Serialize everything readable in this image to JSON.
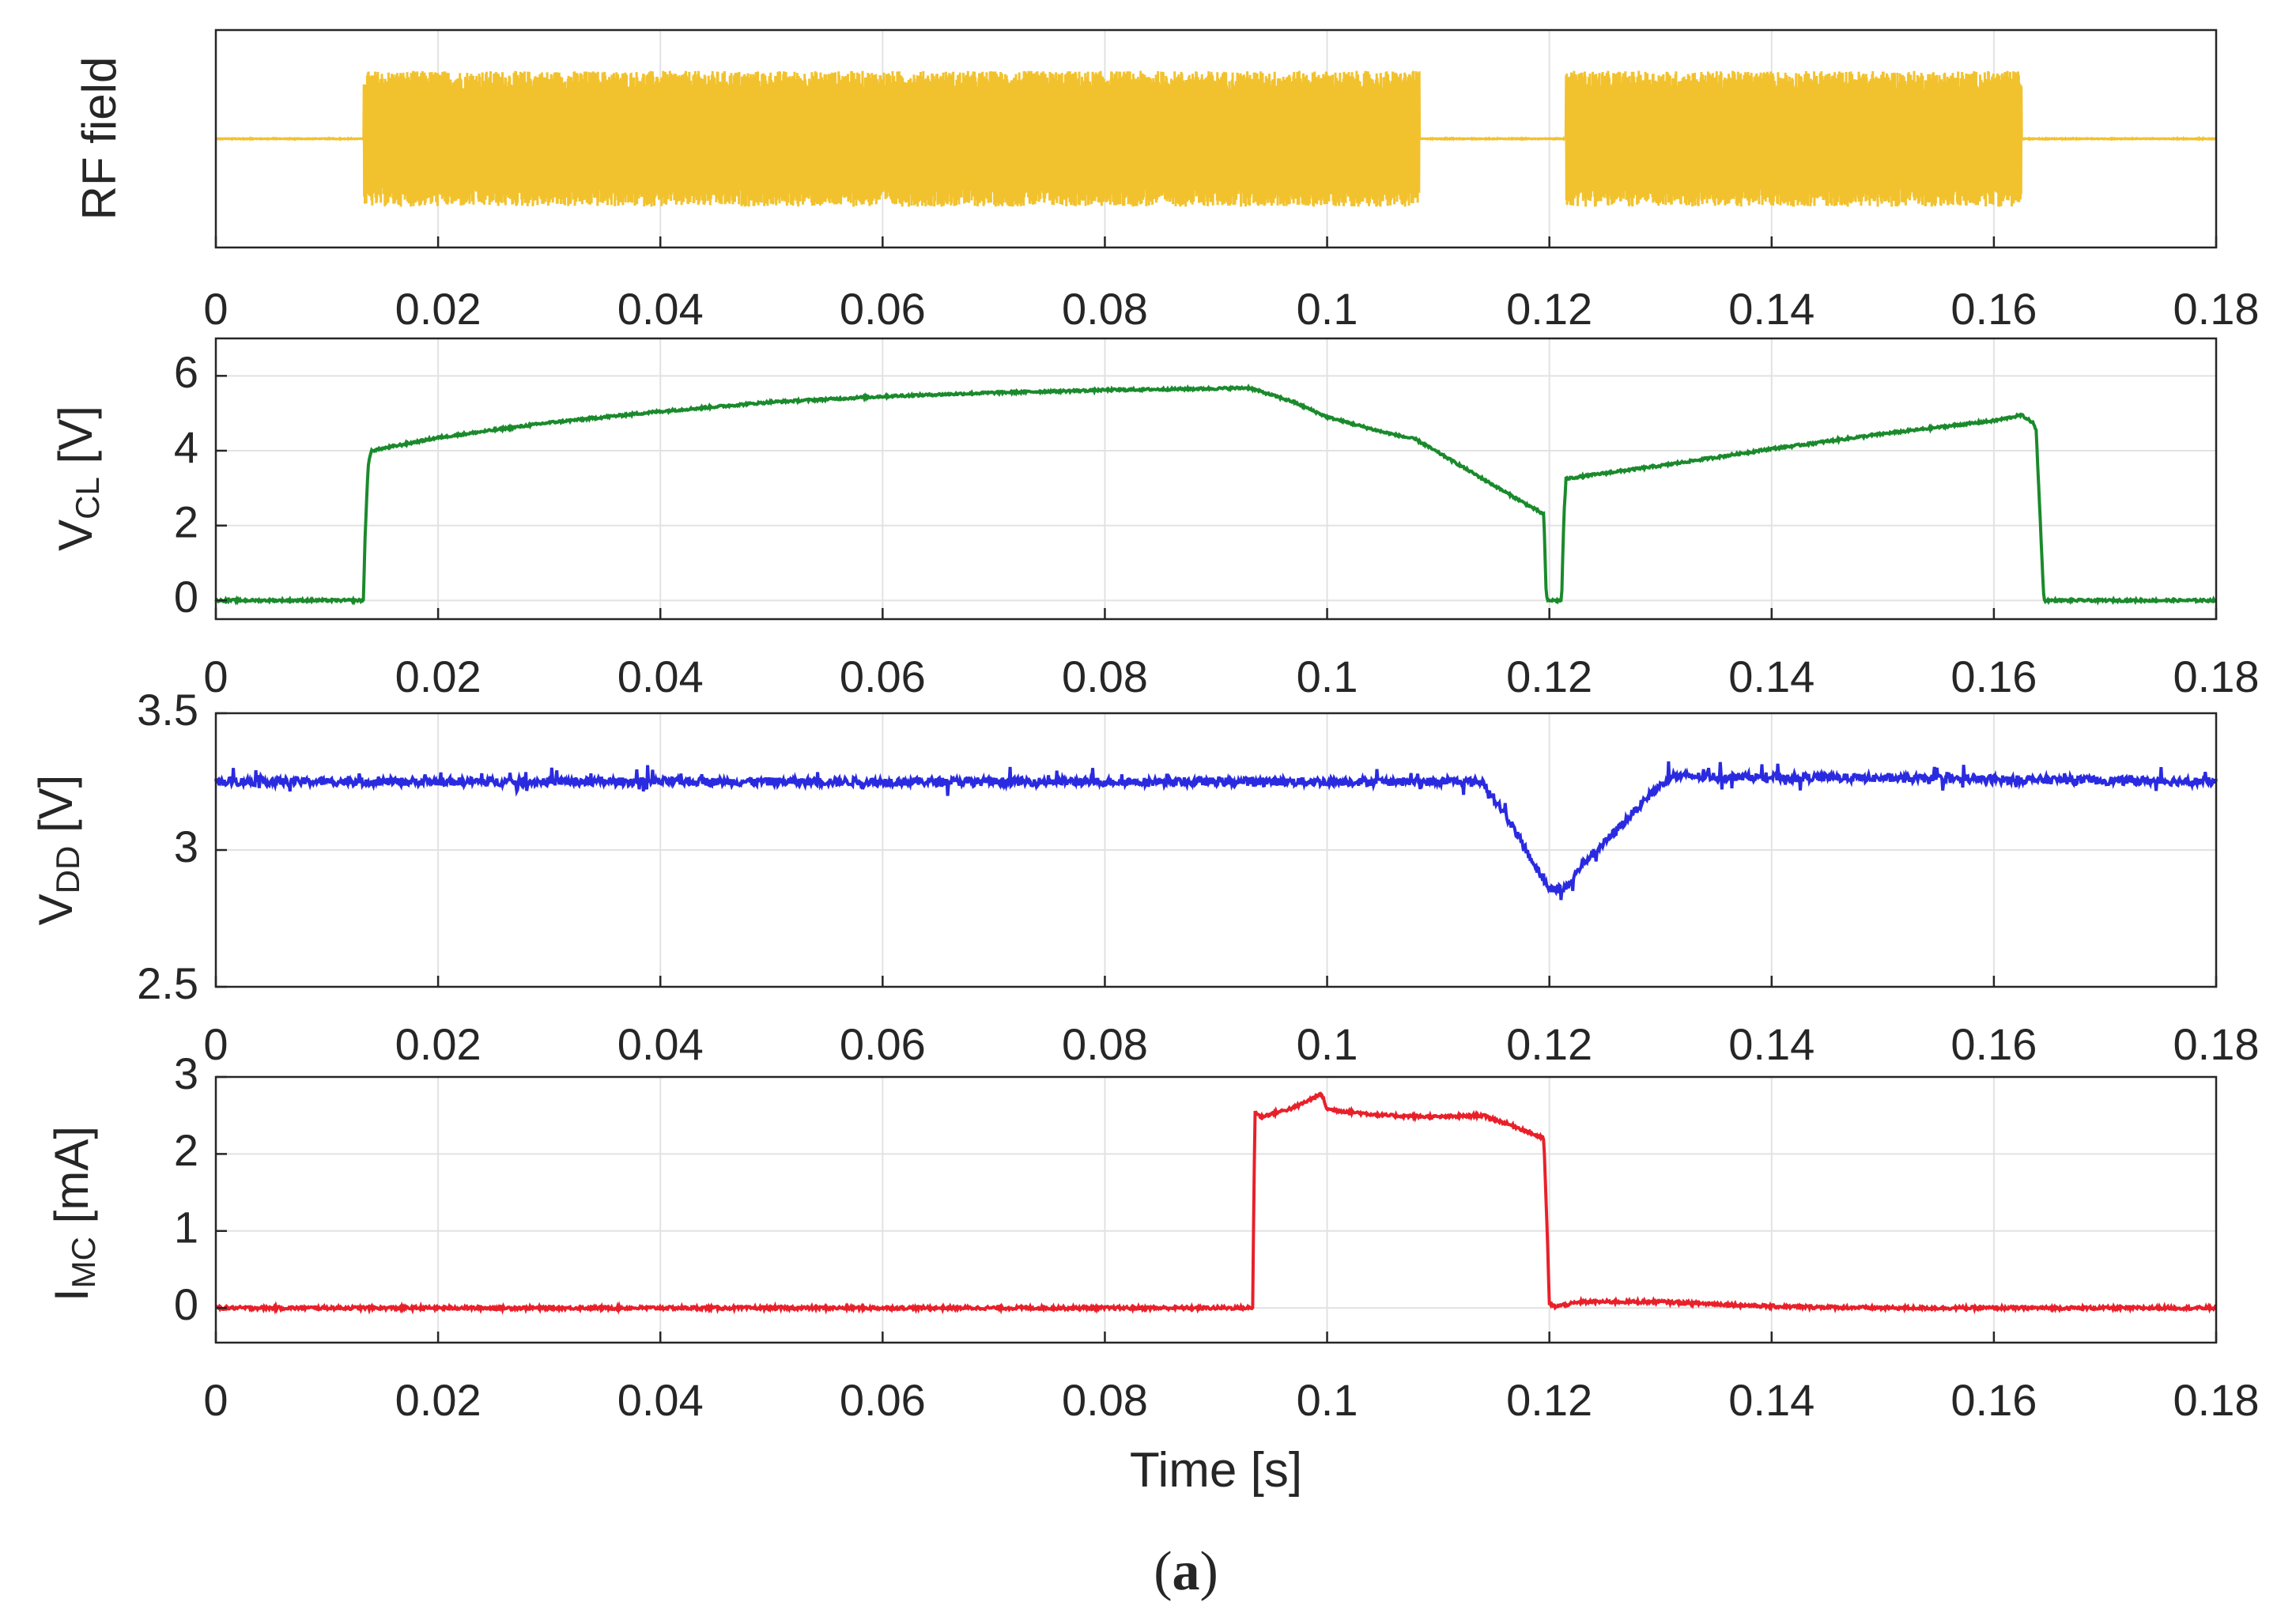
{
  "chart_data": [
    {
      "type": "line",
      "panel": "rf",
      "ylabel": "RF field",
      "color": "#f2c22e",
      "xlim": [
        0,
        0.18
      ],
      "ylim": [
        -1.6,
        1.6
      ],
      "show_y_ticks": false,
      "x_ticks": [
        0,
        0.02,
        0.04,
        0.06,
        0.08,
        0.1,
        0.12,
        0.14,
        0.16,
        0.18
      ],
      "x_tick_labels": [
        "0",
        "0.02",
        "0.04",
        "0.06",
        "0.08",
        "0.1",
        "0.12",
        "0.14",
        "0.16",
        "0.18"
      ],
      "bursts": [
        {
          "start": 0.0133,
          "end": 0.1083,
          "amplitude": 1.0
        },
        {
          "start": 0.1215,
          "end": 0.1625,
          "amplitude": 1.0
        }
      ],
      "grid": true
    },
    {
      "type": "line",
      "panel": "vcl",
      "ylabel_main": "V",
      "ylabel_sub": "CL",
      "ylabel_unit": " [V]",
      "color": "#1a8a2c",
      "xlim": [
        0,
        0.18
      ],
      "ylim": [
        -0.5,
        7
      ],
      "y_ticks": [
        0,
        2,
        4,
        6
      ],
      "x_ticks": [
        0,
        0.02,
        0.04,
        0.06,
        0.08,
        0.1,
        0.12,
        0.14,
        0.16,
        0.18
      ],
      "x_tick_labels": [
        "0",
        "0.02",
        "0.04",
        "0.06",
        "0.08",
        "0.1",
        "0.12",
        "0.14",
        "0.16",
        "0.18"
      ],
      "grid": true,
      "x": [
        0,
        0.0133,
        0.0134,
        0.0137,
        0.014,
        0.02,
        0.03,
        0.04,
        0.05,
        0.06,
        0.07,
        0.08,
        0.09,
        0.093,
        0.097,
        0.1,
        0.105,
        0.108,
        0.112,
        0.116,
        0.1195,
        0.1197,
        0.1198,
        0.1211,
        0.1213,
        0.1215,
        0.125,
        0.13,
        0.14,
        0.15,
        0.16,
        0.1625,
        0.1635,
        0.1638,
        0.1645,
        0.17,
        0.18
      ],
      "y": [
        0,
        0,
        1.5,
        3.6,
        4.0,
        4.35,
        4.75,
        5.05,
        5.3,
        5.45,
        5.55,
        5.62,
        5.66,
        5.68,
        5.3,
        4.9,
        4.5,
        4.3,
        3.6,
        2.9,
        2.3,
        0.3,
        0,
        0,
        2.2,
        3.25,
        3.4,
        3.6,
        4.05,
        4.45,
        4.8,
        4.95,
        4.75,
        4.55,
        0,
        0,
        0
      ],
      "noise": 0.03
    },
    {
      "type": "line",
      "panel": "vdd",
      "ylabel_main": "V",
      "ylabel_sub": "DD",
      "ylabel_unit": " [V]",
      "color": "#2a2ae0",
      "xlim": [
        0,
        0.18
      ],
      "ylim": [
        2.5,
        3.5
      ],
      "y_ticks": [
        2.5,
        3,
        3.5
      ],
      "x_ticks": [
        0,
        0.02,
        0.04,
        0.06,
        0.08,
        0.1,
        0.12,
        0.14,
        0.16,
        0.18
      ],
      "x_tick_labels": [
        "0",
        "0.02",
        "0.04",
        "0.06",
        "0.08",
        "0.1",
        "0.12",
        "0.14",
        "0.16",
        "0.18"
      ],
      "grid": true,
      "x": [
        0,
        0.114,
        0.1165,
        0.119,
        0.12,
        0.1215,
        0.123,
        0.126,
        0.129,
        0.131,
        0.18
      ],
      "y": [
        3.25,
        3.25,
        3.1,
        2.92,
        2.86,
        2.86,
        2.95,
        3.07,
        3.2,
        3.27,
        3.25
      ],
      "noise": 0.015,
      "spikes": 0.05
    },
    {
      "type": "line",
      "panel": "imc",
      "ylabel_main": "I",
      "ylabel_sub": "MC",
      "ylabel_unit": " [mA]",
      "color": "#e8202a",
      "xlim": [
        0,
        0.18
      ],
      "ylim": [
        -0.45,
        3
      ],
      "y_ticks": [
        0,
        1,
        2,
        3
      ],
      "x_ticks": [
        0,
        0.02,
        0.04,
        0.06,
        0.08,
        0.1,
        0.12,
        0.14,
        0.16,
        0.18
      ],
      "x_tick_labels": [
        "0",
        "0.02",
        "0.04",
        "0.06",
        "0.08",
        "0.1",
        "0.12",
        "0.14",
        "0.16",
        "0.18"
      ],
      "xlabel": "Time [s]",
      "grid": true,
      "x": [
        0,
        0.0933,
        0.0935,
        0.094,
        0.097,
        0.0995,
        0.1,
        0.105,
        0.11,
        0.114,
        0.117,
        0.1195,
        0.1198,
        0.12,
        0.1205,
        0.123,
        0.13,
        0.14,
        0.15,
        0.18
      ],
      "y": [
        0,
        0,
        2.55,
        2.48,
        2.6,
        2.78,
        2.58,
        2.5,
        2.48,
        2.5,
        2.35,
        2.2,
        1.0,
        0.05,
        0.02,
        0.08,
        0.08,
        0.02,
        0,
        0
      ],
      "noise": 0.02
    }
  ],
  "caption": {
    "open": "(",
    "letter": "a",
    "close": ")"
  }
}
